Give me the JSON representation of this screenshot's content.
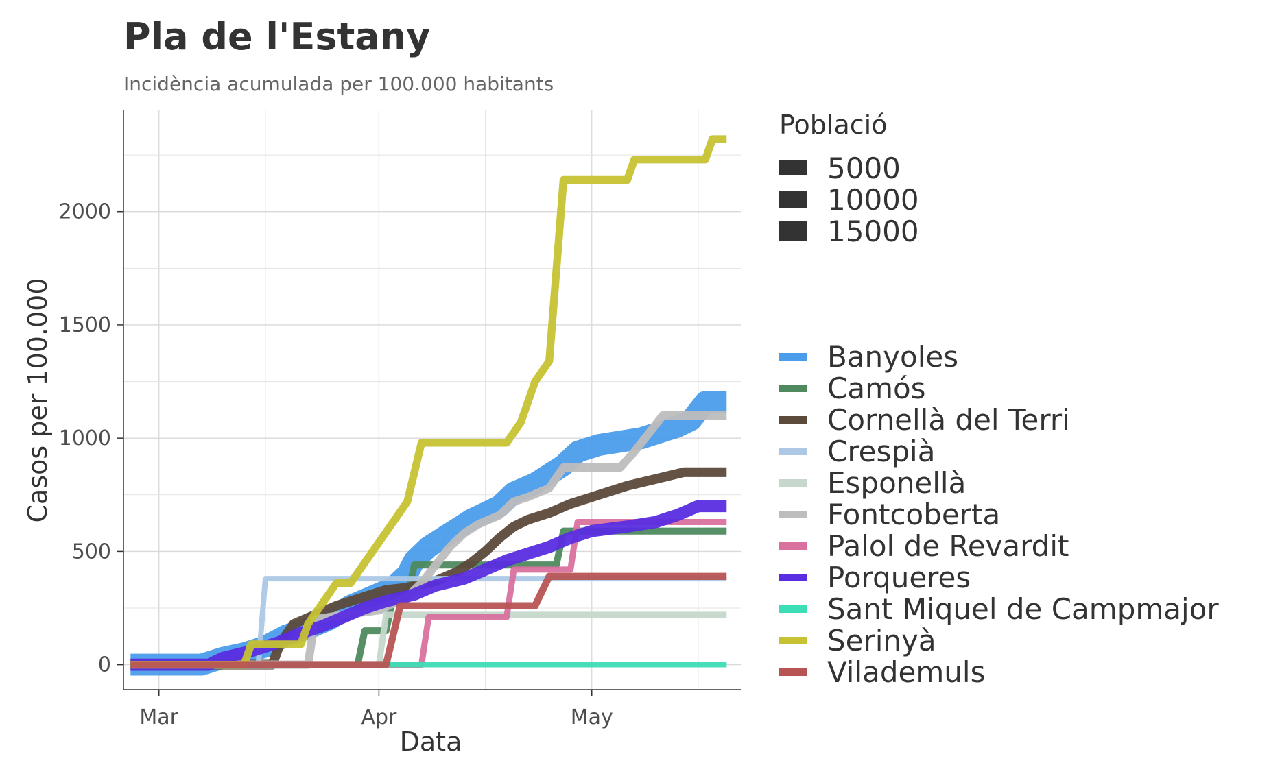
{
  "title": "Pla de l'Estany",
  "subtitle": "Incidència acumulada per 100.000 habitants",
  "chart_data": {
    "type": "line",
    "xlabel": "Data",
    "ylabel": "Casos per 100.000",
    "x_ticks": [
      "Mar",
      "Apr",
      "May"
    ],
    "y_ticks": [
      0,
      500,
      1000,
      1500,
      2000
    ],
    "xlim": [
      "2020-02-25",
      "2020-05-22"
    ],
    "ylim": [
      -110,
      2450
    ],
    "grid": true,
    "legend": "right",
    "size_legend": {
      "title": "Població",
      "entries": [
        "5000",
        "10000",
        "15000"
      ]
    },
    "series": [
      {
        "name": "Banyoles",
        "color": "#4B9CEB",
        "population": 20000,
        "points": [
          [
            "2020-02-26",
            0
          ],
          [
            "2020-03-07",
            0
          ],
          [
            "2020-03-10",
            30
          ],
          [
            "2020-03-13",
            50
          ],
          [
            "2020-03-16",
            80
          ],
          [
            "2020-03-19",
            130
          ],
          [
            "2020-03-22",
            160
          ],
          [
            "2020-03-25",
            200
          ],
          [
            "2020-03-28",
            260
          ],
          [
            "2020-03-31",
            300
          ],
          [
            "2020-04-03",
            340
          ],
          [
            "2020-04-05",
            400
          ],
          [
            "2020-04-06",
            460
          ],
          [
            "2020-04-08",
            520
          ],
          [
            "2020-04-10",
            560
          ],
          [
            "2020-04-12",
            600
          ],
          [
            "2020-04-14",
            640
          ],
          [
            "2020-04-16",
            670
          ],
          [
            "2020-04-18",
            700
          ],
          [
            "2020-04-20",
            760
          ],
          [
            "2020-04-23",
            800
          ],
          [
            "2020-04-25",
            840
          ],
          [
            "2020-04-27",
            880
          ],
          [
            "2020-04-29",
            940
          ],
          [
            "2020-05-02",
            970
          ],
          [
            "2020-05-06",
            990
          ],
          [
            "2020-05-08",
            1000
          ],
          [
            "2020-05-10",
            1020
          ],
          [
            "2020-05-13",
            1050
          ],
          [
            "2020-05-15",
            1080
          ],
          [
            "2020-05-17",
            1160
          ],
          [
            "2020-05-20",
            1160
          ]
        ]
      },
      {
        "name": "Camós",
        "color": "#4E8A5E",
        "population": 700,
        "points": [
          [
            "2020-02-26",
            0
          ],
          [
            "2020-03-29",
            0
          ],
          [
            "2020-03-30",
            150
          ],
          [
            "2020-04-02",
            150
          ],
          [
            "2020-04-03",
            300
          ],
          [
            "2020-04-05",
            300
          ],
          [
            "2020-04-06",
            440
          ],
          [
            "2020-04-26",
            440
          ],
          [
            "2020-04-27",
            590
          ],
          [
            "2020-05-20",
            590
          ]
        ]
      },
      {
        "name": "Cornellà del Terri",
        "color": "#5C4A3B",
        "population": 2300,
        "points": [
          [
            "2020-02-26",
            0
          ],
          [
            "2020-03-17",
            0
          ],
          [
            "2020-03-18",
            90
          ],
          [
            "2020-03-20",
            180
          ],
          [
            "2020-03-23",
            220
          ],
          [
            "2020-03-26",
            260
          ],
          [
            "2020-03-30",
            300
          ],
          [
            "2020-04-02",
            330
          ],
          [
            "2020-04-05",
            340
          ],
          [
            "2020-04-09",
            370
          ],
          [
            "2020-04-12",
            410
          ],
          [
            "2020-04-14",
            450
          ],
          [
            "2020-04-16",
            500
          ],
          [
            "2020-04-18",
            560
          ],
          [
            "2020-04-20",
            610
          ],
          [
            "2020-04-22",
            640
          ],
          [
            "2020-04-25",
            670
          ],
          [
            "2020-04-28",
            710
          ],
          [
            "2020-05-02",
            750
          ],
          [
            "2020-05-06",
            790
          ],
          [
            "2020-05-10",
            820
          ],
          [
            "2020-05-14",
            850
          ],
          [
            "2020-05-20",
            850
          ]
        ]
      },
      {
        "name": "Crespià",
        "color": "#ACC8E5",
        "population": 250,
        "points": [
          [
            "2020-02-26",
            0
          ],
          [
            "2020-03-15",
            0
          ],
          [
            "2020-03-16",
            380
          ],
          [
            "2020-05-20",
            380
          ]
        ]
      },
      {
        "name": "Esponellà",
        "color": "#C5D8CB",
        "population": 450,
        "points": [
          [
            "2020-02-26",
            0
          ],
          [
            "2020-04-01",
            0
          ],
          [
            "2020-04-02",
            220
          ],
          [
            "2020-05-20",
            220
          ]
        ]
      },
      {
        "name": "Fontcoberta",
        "color": "#BDBDBD",
        "population": 1400,
        "points": [
          [
            "2020-02-26",
            0
          ],
          [
            "2020-03-22",
            0
          ],
          [
            "2020-03-23",
            200
          ],
          [
            "2020-03-27",
            220
          ],
          [
            "2020-04-01",
            240
          ],
          [
            "2020-04-05",
            300
          ],
          [
            "2020-04-07",
            360
          ],
          [
            "2020-04-09",
            440
          ],
          [
            "2020-04-11",
            520
          ],
          [
            "2020-04-13",
            580
          ],
          [
            "2020-04-15",
            620
          ],
          [
            "2020-04-18",
            660
          ],
          [
            "2020-04-20",
            720
          ],
          [
            "2020-04-22",
            740
          ],
          [
            "2020-04-25",
            780
          ],
          [
            "2020-04-27",
            870
          ],
          [
            "2020-05-01",
            870
          ],
          [
            "2020-05-05",
            870
          ],
          [
            "2020-05-07",
            940
          ],
          [
            "2020-05-09",
            1020
          ],
          [
            "2020-05-11",
            1100
          ],
          [
            "2020-05-20",
            1100
          ]
        ]
      },
      {
        "name": "Palol de Revardit",
        "color": "#D9719F",
        "population": 450,
        "points": [
          [
            "2020-02-26",
            0
          ],
          [
            "2020-04-07",
            0
          ],
          [
            "2020-04-08",
            210
          ],
          [
            "2020-04-19",
            210
          ],
          [
            "2020-04-20",
            420
          ],
          [
            "2020-04-28",
            420
          ],
          [
            "2020-04-29",
            630
          ],
          [
            "2020-05-20",
            630
          ]
        ]
      },
      {
        "name": "Porqueres",
        "color": "#5A2DE0",
        "population": 4500,
        "points": [
          [
            "2020-02-26",
            0
          ],
          [
            "2020-03-08",
            0
          ],
          [
            "2020-03-10",
            30
          ],
          [
            "2020-03-14",
            60
          ],
          [
            "2020-03-18",
            100
          ],
          [
            "2020-03-21",
            140
          ],
          [
            "2020-03-24",
            170
          ],
          [
            "2020-03-27",
            210
          ],
          [
            "2020-03-30",
            250
          ],
          [
            "2020-04-02",
            280
          ],
          [
            "2020-04-06",
            310
          ],
          [
            "2020-04-09",
            350
          ],
          [
            "2020-04-13",
            380
          ],
          [
            "2020-04-16",
            420
          ],
          [
            "2020-04-19",
            460
          ],
          [
            "2020-04-22",
            490
          ],
          [
            "2020-04-25",
            520
          ],
          [
            "2020-04-28",
            560
          ],
          [
            "2020-05-01",
            590
          ],
          [
            "2020-05-06",
            610
          ],
          [
            "2020-05-10",
            630
          ],
          [
            "2020-05-13",
            660
          ],
          [
            "2020-05-16",
            700
          ],
          [
            "2020-05-20",
            700
          ]
        ]
      },
      {
        "name": "Sant Miquel de Campmajor",
        "color": "#3DDDB5",
        "population": 200,
        "points": [
          [
            "2020-02-26",
            0
          ],
          [
            "2020-05-20",
            0
          ]
        ]
      },
      {
        "name": "Serinyà",
        "color": "#C6C233",
        "population": 1100,
        "points": [
          [
            "2020-02-26",
            0
          ],
          [
            "2020-03-13",
            0
          ],
          [
            "2020-03-14",
            90
          ],
          [
            "2020-03-21",
            90
          ],
          [
            "2020-03-22",
            180
          ],
          [
            "2020-03-24",
            270
          ],
          [
            "2020-03-26",
            360
          ],
          [
            "2020-03-28",
            360
          ],
          [
            "2020-03-30",
            450
          ],
          [
            "2020-04-01",
            540
          ],
          [
            "2020-04-03",
            630
          ],
          [
            "2020-04-05",
            720
          ],
          [
            "2020-04-07",
            980
          ],
          [
            "2020-04-19",
            980
          ],
          [
            "2020-04-21",
            1070
          ],
          [
            "2020-04-23",
            1250
          ],
          [
            "2020-04-25",
            1340
          ],
          [
            "2020-04-27",
            2140
          ],
          [
            "2020-05-06",
            2140
          ],
          [
            "2020-05-07",
            2230
          ],
          [
            "2020-05-17",
            2230
          ],
          [
            "2020-05-18",
            2320
          ],
          [
            "2020-05-20",
            2320
          ]
        ]
      },
      {
        "name": "Vilademuls",
        "color": "#B85454",
        "population": 800,
        "points": [
          [
            "2020-02-26",
            0
          ],
          [
            "2020-04-02",
            0
          ],
          [
            "2020-04-04",
            260
          ],
          [
            "2020-04-23",
            260
          ],
          [
            "2020-04-25",
            390
          ],
          [
            "2020-05-20",
            390
          ]
        ]
      }
    ]
  }
}
